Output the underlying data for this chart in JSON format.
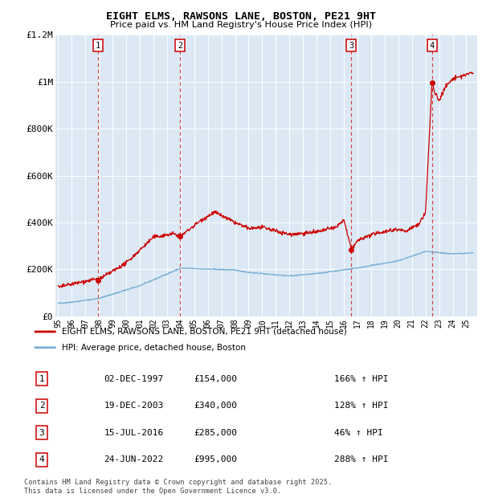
{
  "title": "EIGHT ELMS, RAWSONS LANE, BOSTON, PE21 9HT",
  "subtitle": "Price paid vs. HM Land Registry's House Price Index (HPI)",
  "background_color": "#dce9f5",
  "red_line_color": "#cc0000",
  "blue_line_color": "#7aafd4",
  "grid_color": "#ffffff",
  "sale_dates": [
    1997.92,
    2003.96,
    2016.54,
    2022.48
  ],
  "sale_prices": [
    154000,
    340000,
    285000,
    995000
  ],
  "sale_labels": [
    "1",
    "2",
    "3",
    "4"
  ],
  "table_rows": [
    {
      "num": "1",
      "date": "02-DEC-1997",
      "price": "£154,000",
      "pct": "166% ↑ HPI"
    },
    {
      "num": "2",
      "date": "19-DEC-2003",
      "price": "£340,000",
      "pct": "128% ↑ HPI"
    },
    {
      "num": "3",
      "date": "15-JUL-2016",
      "price": "£285,000",
      "pct": "46% ↑ HPI"
    },
    {
      "num": "4",
      "date": "24-JUN-2022",
      "price": "£995,000",
      "pct": "288% ↑ HPI"
    }
  ],
  "legend_label_red": "EIGHT ELMS, RAWSONS LANE, BOSTON, PE21 9HT (detached house)",
  "legend_label_blue": "HPI: Average price, detached house, Boston",
  "footer": "Contains HM Land Registry data © Crown copyright and database right 2025.\nThis data is licensed under the Open Government Licence v3.0.",
  "ylim": [
    0,
    1200000
  ],
  "xlim_start": 1994.8,
  "xlim_end": 2025.8,
  "yticks": [
    0,
    200000,
    400000,
    600000,
    800000,
    1000000,
    1200000
  ],
  "ytick_labels": [
    "£0",
    "£200K",
    "£400K",
    "£600K",
    "£800K",
    "£1M",
    "£1.2M"
  ]
}
